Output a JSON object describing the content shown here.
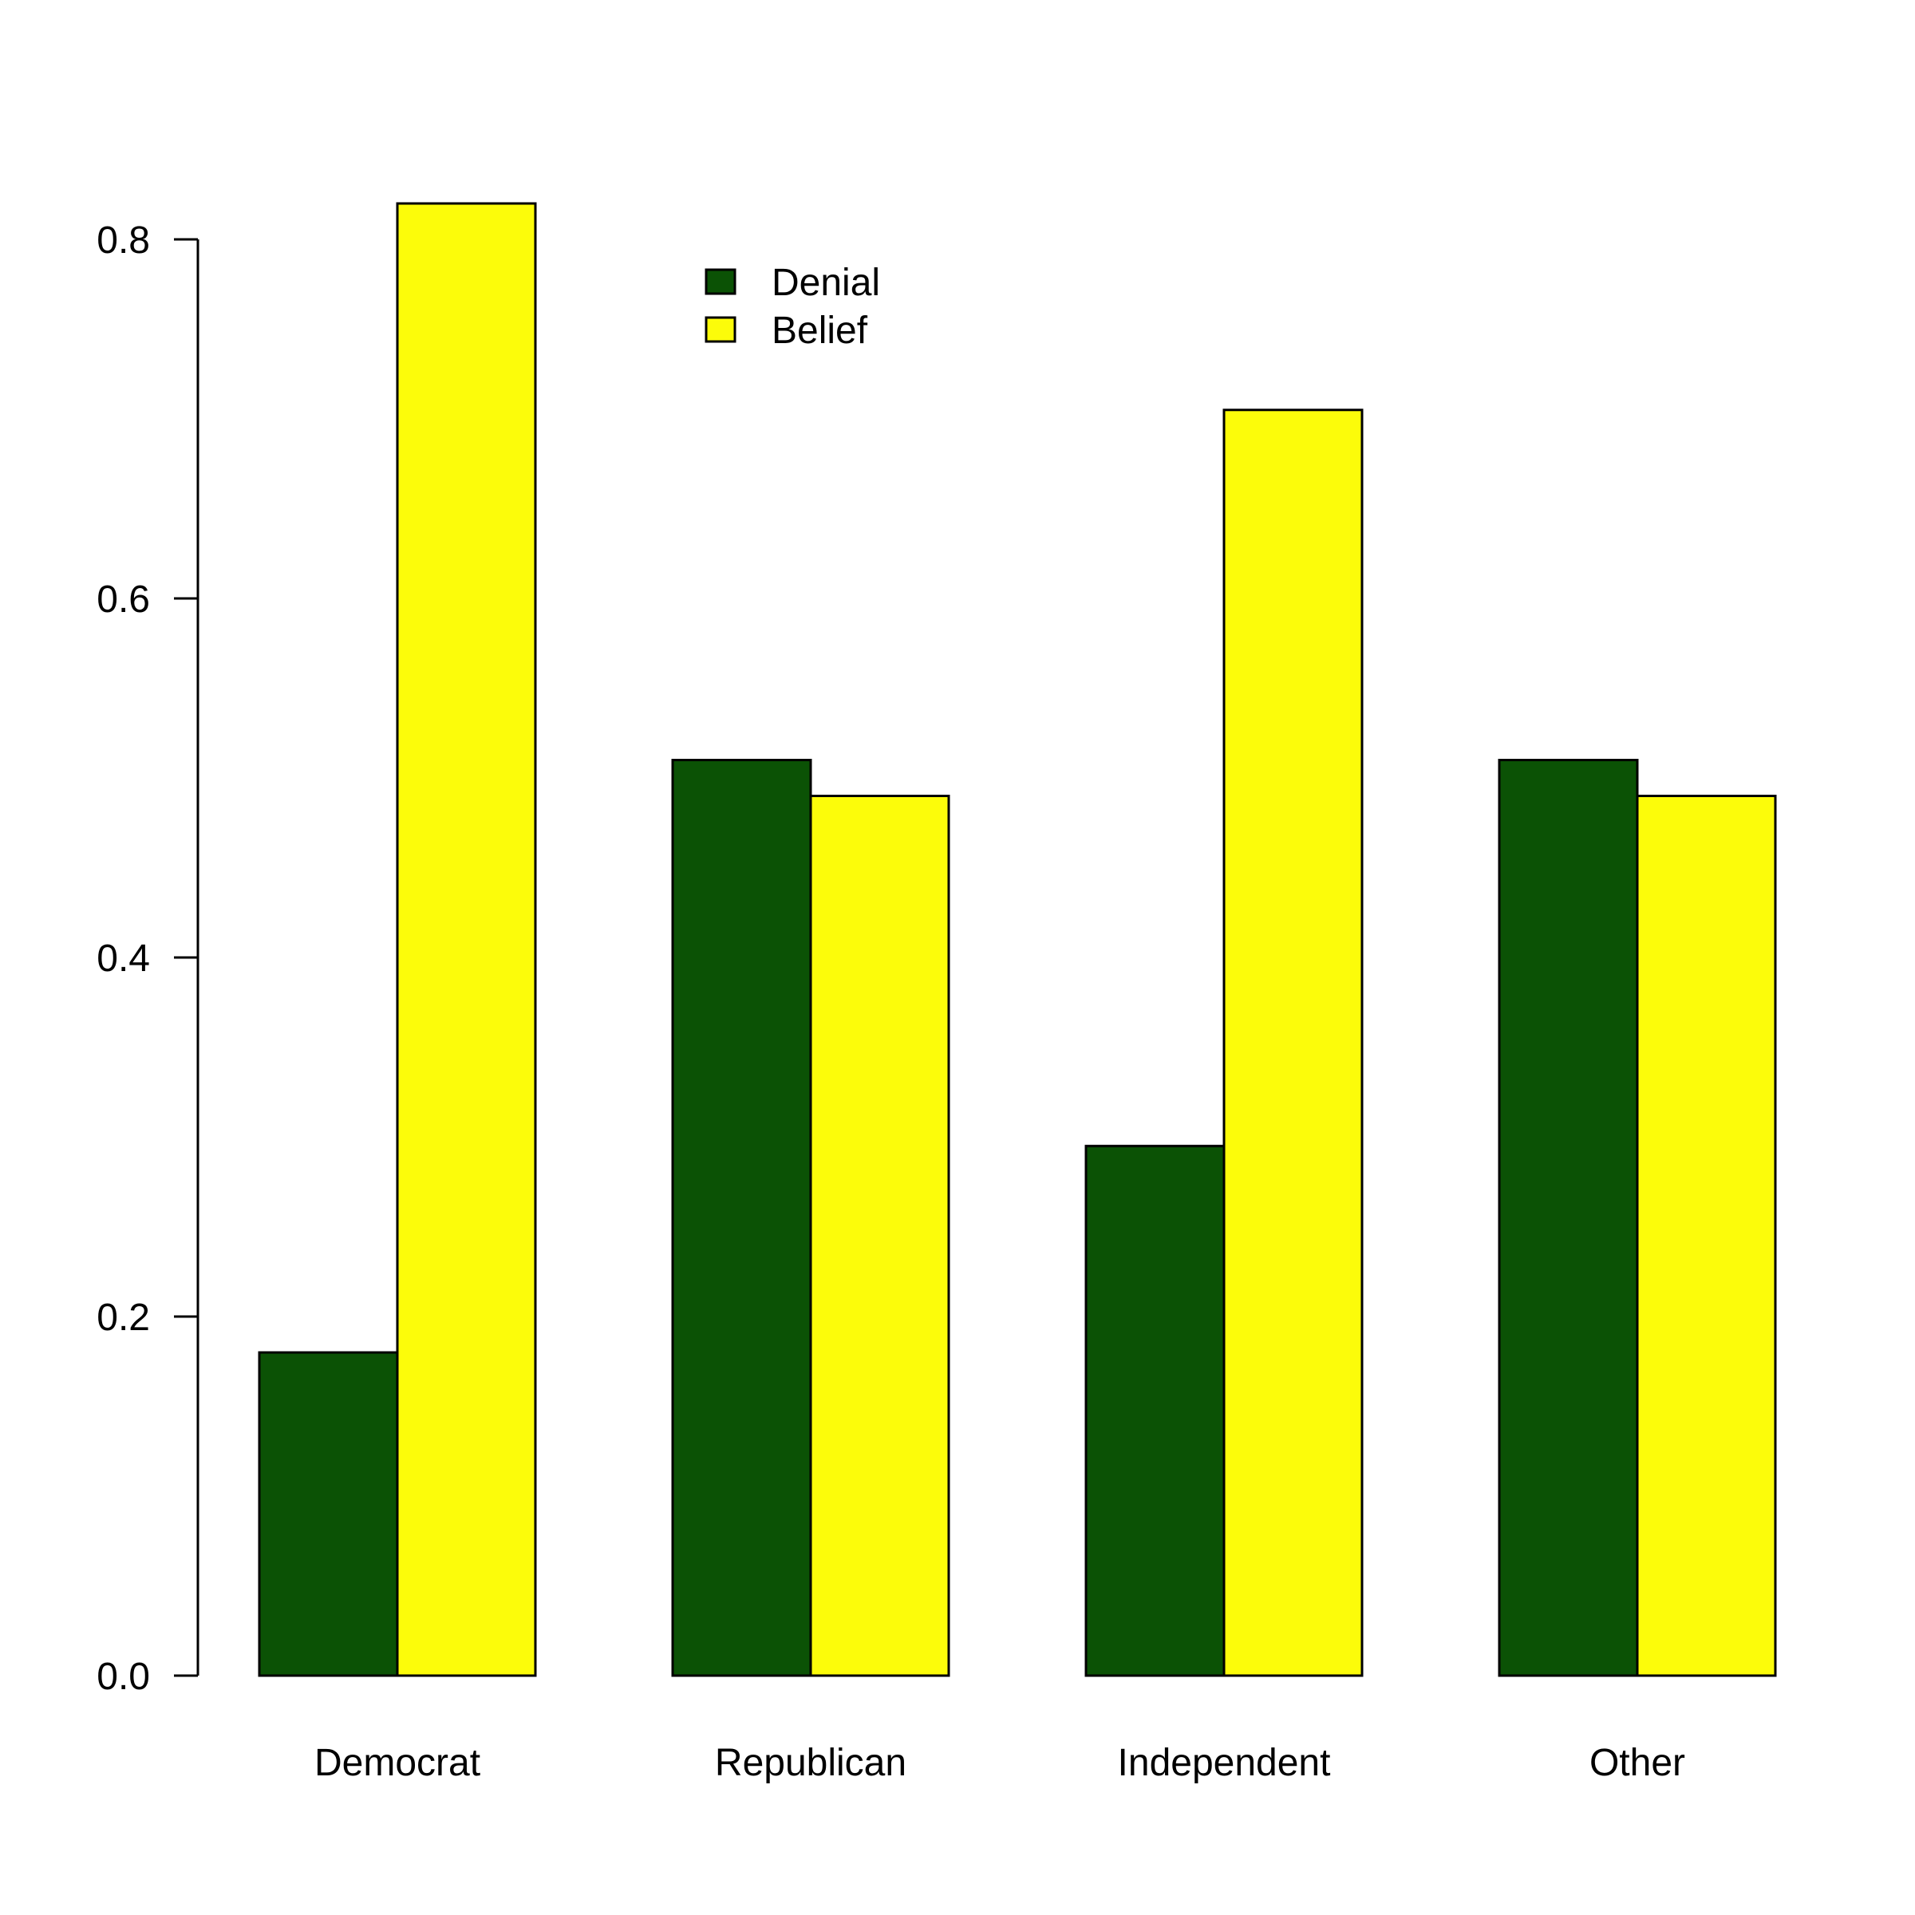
{
  "chart_data": {
    "type": "bar",
    "categories": [
      "Democrat",
      "Republican",
      "Independent",
      "Other"
    ],
    "series": [
      {
        "name": "Denial",
        "color": "#0b5205",
        "values": [
          0.18,
          0.51,
          0.295,
          0.51
        ]
      },
      {
        "name": "Belief",
        "color": "#fcfc0a",
        "values": [
          0.82,
          0.49,
          0.705,
          0.49
        ]
      }
    ],
    "yticks": [
      "0.0",
      "0.2",
      "0.4",
      "0.6",
      "0.8"
    ],
    "ylim": [
      0,
      0.8
    ],
    "title": "",
    "xlabel": "",
    "ylabel": "",
    "grid": false,
    "legend_position": "top-center"
  }
}
